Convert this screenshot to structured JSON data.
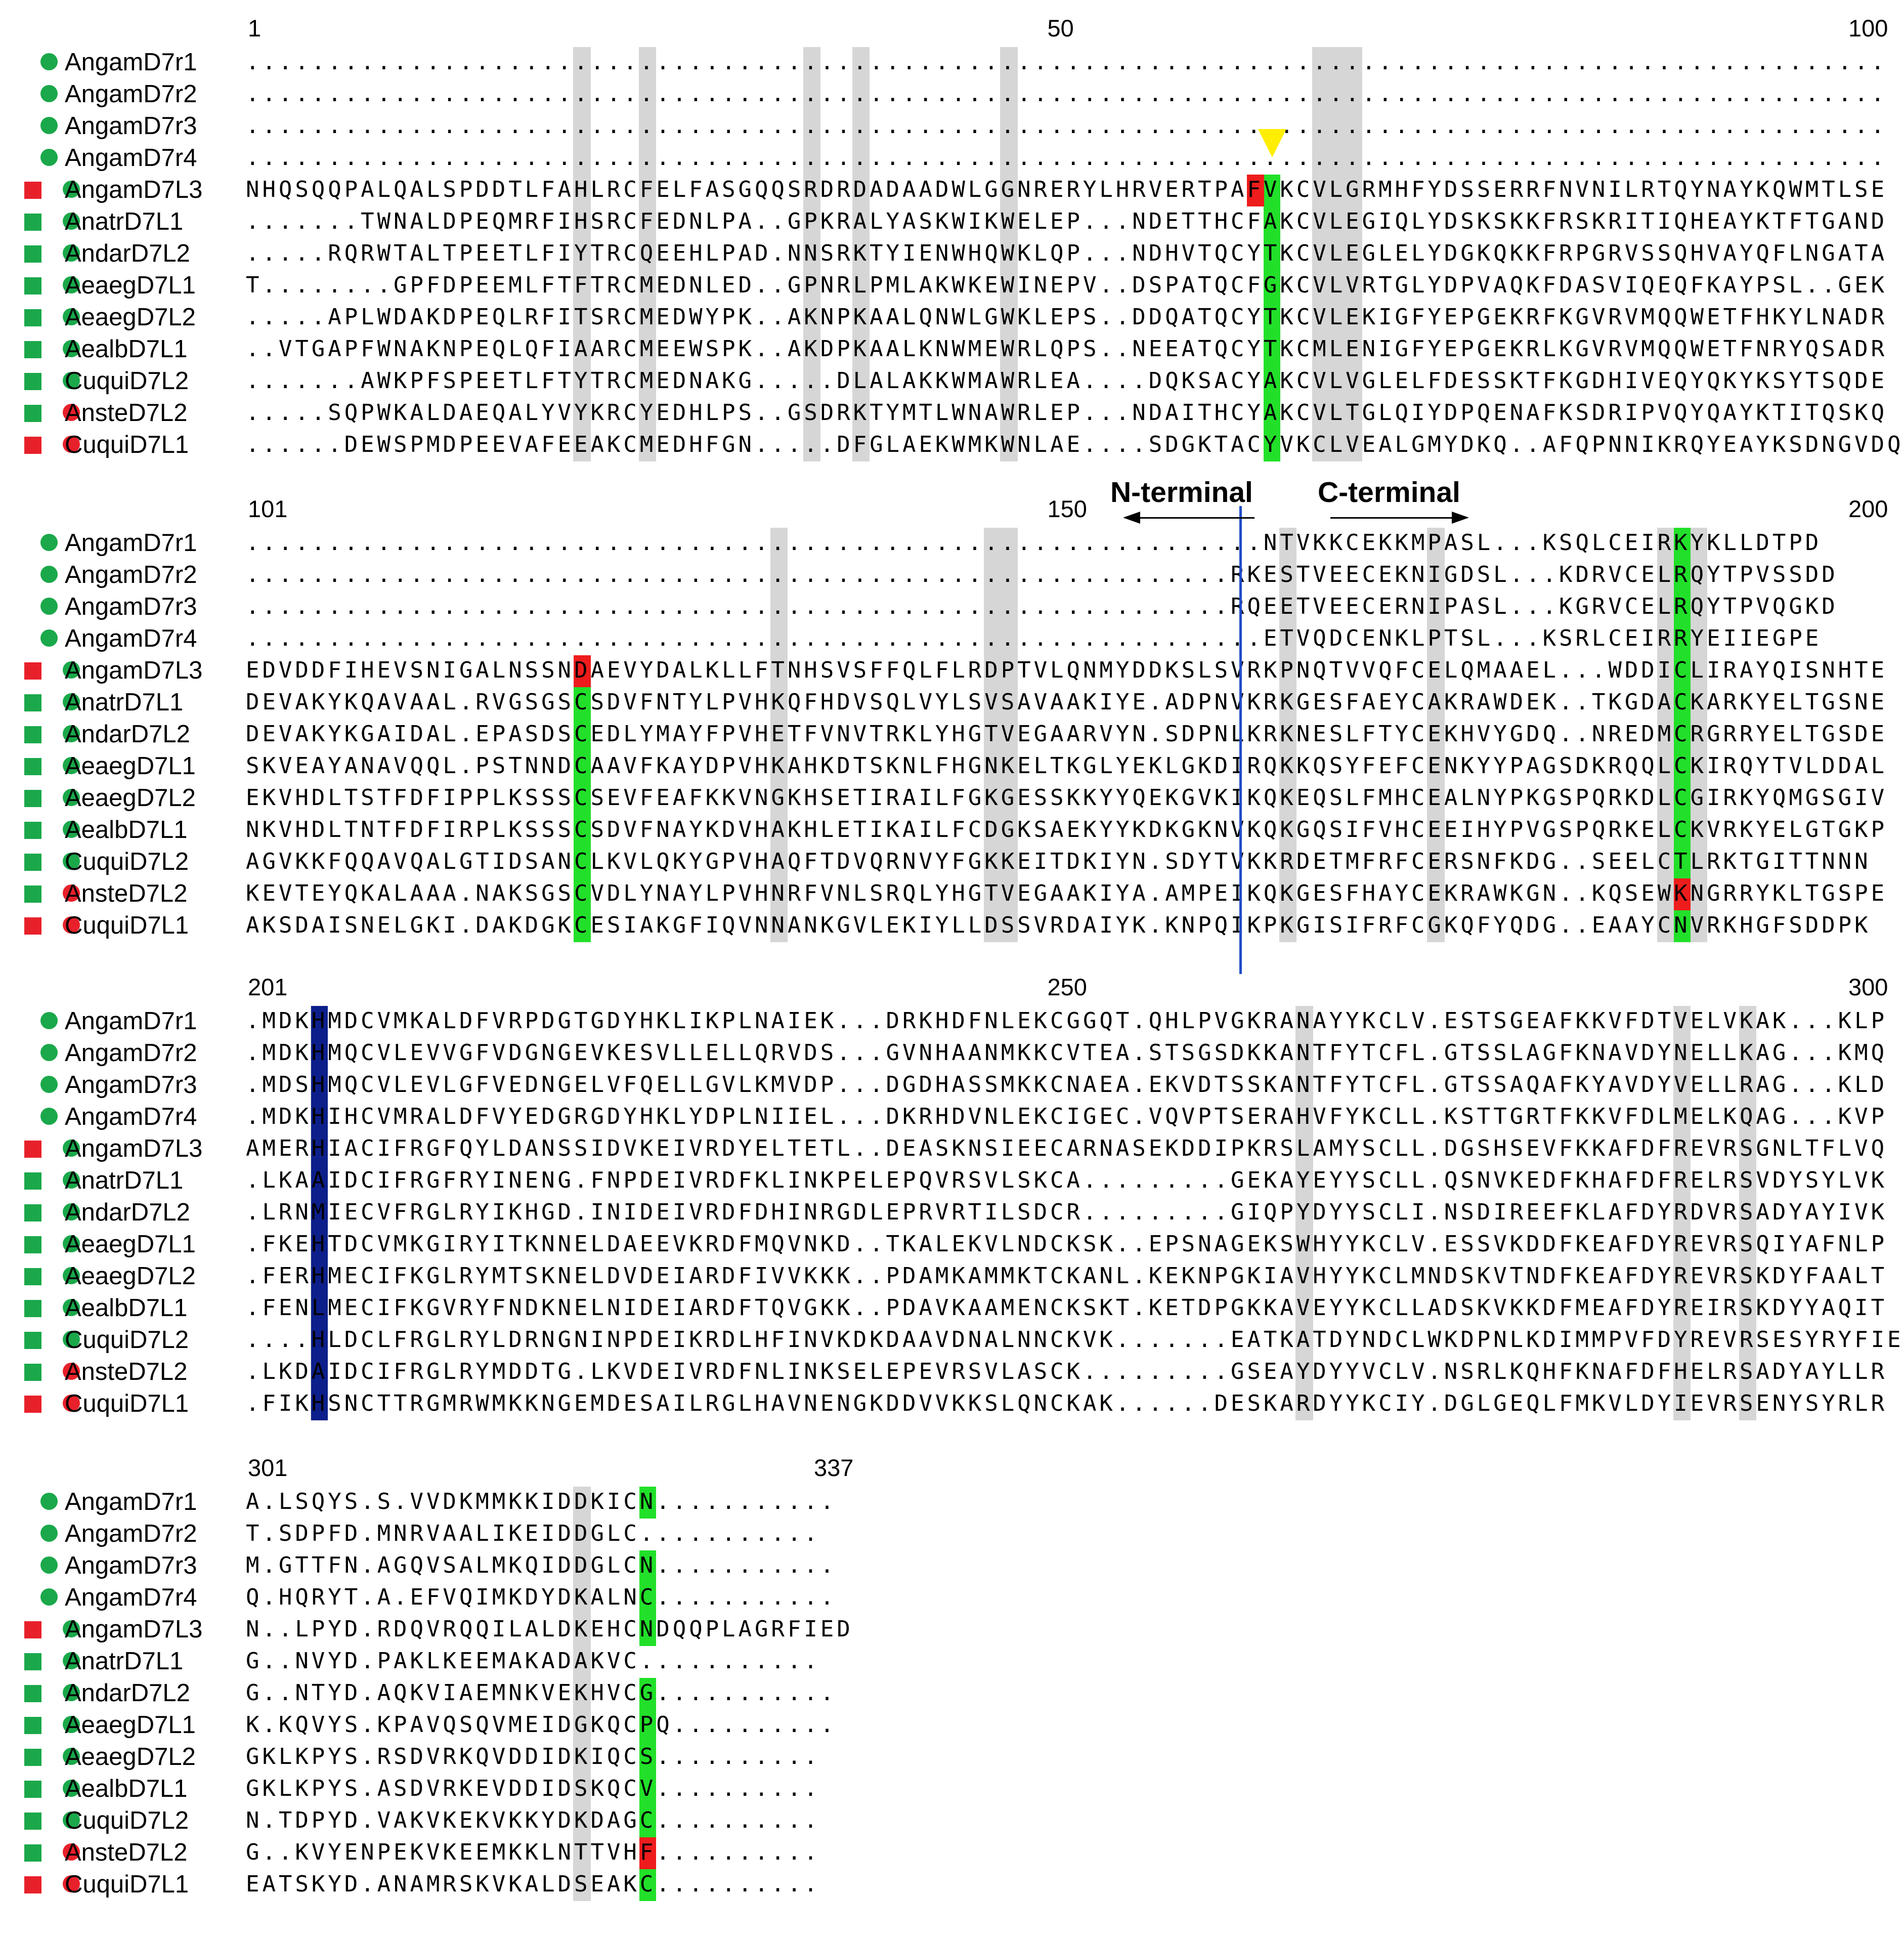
{
  "blocks": [
    {
      "start_label": "1",
      "mid_label": "50",
      "end_label": "100",
      "rows": [
        {
          "name": "AngamD7r1",
          "markers": [
            "none",
            "green-circle"
          ],
          "seq": "...................................................................................................."
        },
        {
          "name": "AngamD7r2",
          "markers": [
            "none",
            "green-circle"
          ],
          "seq": "...................................................................................................."
        },
        {
          "name": "AngamD7r3",
          "markers": [
            "none",
            "green-circle"
          ],
          "seq": "...................................................................................................."
        },
        {
          "name": "AngamD7r4",
          "markers": [
            "none",
            "green-circle"
          ],
          "seq": "...................................................................................................."
        },
        {
          "name": "AngamD7L3",
          "markers": [
            "red-square",
            "green-circle"
          ],
          "seq": "NHQSQQPALQALSPDDTLFAHLRCFELFASGQQSRDRDADAADWLGGNRERYLHRVERTPAFVKCVLGRMHFYDSSERRFNVNILRTQYNAYKQWMTLSE"
        },
        {
          "name": "AnatrD7L1",
          "markers": [
            "green-square",
            "green-circle"
          ],
          "seq": ".......TWNALDPEQMRFIHSRCFEDNLPA..GPKRALYASKWIKWELEP...NDETTHCFAKCVLEGIQLYDSKSKKFRSKRITIQHEAYKTFTGAND"
        },
        {
          "name": "AndarD7L2",
          "markers": [
            "green-square",
            "green-circle"
          ],
          "seq": ".....RQRWTALTPEETLFIYTRCQEEHLPAD.NNSRKTYIENWHQWKLQP...NDHVTQCYTKCVLEGLELYDGKQKKFRPGRVSSQHVAYQFLNGATA"
        },
        {
          "name": "AeaegD7L1",
          "markers": [
            "green-square",
            "green-circle"
          ],
          "seq": "T........GPFDPEEMLFTFTRCMEDNLED..GPNRLPMLAKWKEWINEPV..DSPATQCFGKCVLVRTGLYDPVAQKFDASVIQEQFKAYPSL..GEK"
        },
        {
          "name": "AeaegD7L2",
          "markers": [
            "green-square",
            "green-circle"
          ],
          "seq": ".....APLWDAKDPEQLRFITSRCMEDWYPK..AKNPKAALQNWLGWKLEPS..DDQATQCYTKCVLEKIGFYEPGEKRFKGVRVMQQWETFHKYLNADR"
        },
        {
          "name": "AealbD7L1",
          "markers": [
            "green-square",
            "green-circle"
          ],
          "seq": "..VTGAPFWNAKNPEQLQFIAARCMEEWSPK..AKDPKAALKNWMEWRLQPS..NEEATQCYTKCMLENIGFYEPGEKRLKGVRVMQQWETFNRYQSADR"
        },
        {
          "name": "CuquiD7L2",
          "markers": [
            "green-square",
            "green-circle"
          ],
          "seq": ".......AWKPFSPEETLFTYTRCMEDNAKG.....DLALAKKWMAWRLEA....DQKSACYAKCVLVGLELFDESSKTFKGDHIVEQYQKYKSYTSQDE"
        },
        {
          "name": "AnsteD7L2",
          "markers": [
            "green-square",
            "red-circle"
          ],
          "seq": ".....SQPWKALDAEQALYVYKRCYEDHLPS..GSDRKTYMTLWNAWRLEP...NDAITHCYAKCVLTGLQIYDPQENAFKSDRIPVQYQAYKTITQSKQ"
        },
        {
          "name": "CuquiD7L1",
          "markers": [
            "red-square",
            "red-circle"
          ],
          "seq": "......DEWSPMDPEEVAFEEAKCMEDHFGN.....DFGLAEKWMKWNLAE....SDGKTACYVKCLVEALGMYDKQ..AFQPNNIKRQYEAYKSDNGVDQ"
        }
      ]
    },
    {
      "start_label": "101",
      "mid_label": "150",
      "end_label": "200",
      "rows": [
        {
          "name": "AngamD7r1",
          "markers": [
            "none",
            "green-circle"
          ],
          "seq": "..............................................................NTVKKCEKKMPASL...KSQLCEIRKYKLLDTPD"
        },
        {
          "name": "AngamD7r2",
          "markers": [
            "none",
            "green-circle"
          ],
          "seq": "............................................................RKESTVEECEKNIGDSL...KDRVCELRQYTPVSSDD"
        },
        {
          "name": "AngamD7r3",
          "markers": [
            "none",
            "green-circle"
          ],
          "seq": "............................................................RQEETVEECERNIPASL...KGRVCELRQYTPVQGKD"
        },
        {
          "name": "AngamD7r4",
          "markers": [
            "none",
            "green-circle"
          ],
          "seq": "..............................................................ETVQDCENKLPTSL...KSRLCEIRRYEIIEGPE"
        },
        {
          "name": "AngamD7L3",
          "markers": [
            "red-square",
            "green-circle"
          ],
          "seq": "EDVDDFIHEVSNIGALNSSNDAEVYDALKLLFTNHSVSFFQLFLRDPTVLQNMYDDKSLSVRKPNQTVVQFCELQMAAEL...WDDICLIRAYQISNHTE"
        },
        {
          "name": "AnatrD7L1",
          "markers": [
            "green-square",
            "green-circle"
          ],
          "seq": "DEVAKYKQAVAAL.RVGSGSCSDVFNTYLPVHKQFHDVSQLVYLSVSAVAAKIYE.ADPNVKRKGESFAEYCAKRAWDEK..TKGDACKARKYELTGSNE"
        },
        {
          "name": "AndarD7L2",
          "markers": [
            "green-square",
            "green-circle"
          ],
          "seq": "DEVAKYKGAIDAL.EPASDSCEDLYMAYFPVHETFVNVTRKLYHGTVEGAARVYN.SDPNLKRKNESLFTYCEKHVYGDQ..NREDMCRGRRYELTGSDE"
        },
        {
          "name": "AeaegD7L1",
          "markers": [
            "green-square",
            "green-circle"
          ],
          "seq": "SKVEAYANAVQQL.PSTNNDCAAVFKAYDPVHKAHKDTSKNLFHGNKELTKGLYEKLGKDIRQKKQSYFEFCENKYYPAGSDKRQQLCKIRQYTVLDDAL"
        },
        {
          "name": "AeaegD7L2",
          "markers": [
            "green-square",
            "green-circle"
          ],
          "seq": "EKVHDLTSTFDFIPPLKSSSCSEVFEAFKKVNGKHSETIRAILFGKGESSKKYYQEKGVKIKQKEQSLFMHCEALNYPKGSPQRKDLCGIRKYQMGSGIV"
        },
        {
          "name": "AealbD7L1",
          "markers": [
            "green-square",
            "green-circle"
          ],
          "seq": "NKVHDLTNTFDFIRPLKSSSCSDVFNAYKDVHAKHLETIKAILFCDGKSAEKYYKDKGKNVKQKGQSIFVHCEEIHYPVGSPQRKELCKVRKYELGTGKP"
        },
        {
          "name": "CuquiD7L2",
          "markers": [
            "green-square",
            "green-circle"
          ],
          "seq": "AGVKKFQQAVQALGTIDSANCLKVLQKYGPVHAQFTDVQRNVYFGKKEITDKIYN.SDYTVKKRDETMFRFCERSNFKDG..SEELCTLRKTGITTNNN"
        },
        {
          "name": "AnsteD7L2",
          "markers": [
            "green-square",
            "red-circle"
          ],
          "seq": "KEVTEYQKALAAA.NAKSGSCVDLYNAYLPVHNRFVNLSRQLYHGTVEGAAKIYA.AMPEIKQKGESFHAYCEKRAWKGN..KQSEWKNGRRYKLTGSPE"
        },
        {
          "name": "CuquiD7L1",
          "markers": [
            "red-square",
            "red-circle"
          ],
          "seq": "AKSDAISNELGKI.DAKDGKCESIAKGFIQVNNANKGVLEKIYLLDSSVRDAIYK.KNPQIKPKGISIFRFCGKQFYQDG..EAAYCNVRKHGFSDDPK"
        }
      ]
    },
    {
      "start_label": "201",
      "mid_label": "250",
      "end_label": "300",
      "rows": [
        {
          "name": "AngamD7r1",
          "markers": [
            "none",
            "green-circle"
          ],
          "seq": ".MDKHMDCVMKALDFVRPDGTGDYHKLIKPLNAIEK...DRKHDFNLEKCGGQT.QHLPVGKRANAYYKCLV.ESTSGEAFKKVFDTVELVKAK...KLP"
        },
        {
          "name": "AngamD7r2",
          "markers": [
            "none",
            "green-circle"
          ],
          "seq": ".MDKHMQCVLEVVGFVDGNGEVKESVLLELLQRVDS...GVNHAANMKKCVTEA.STSGSDKKANTFYTCFL.GTSSLAGFKNAVDYNELLKAG...KMQ"
        },
        {
          "name": "AngamD7r3",
          "markers": [
            "none",
            "green-circle"
          ],
          "seq": ".MDSHMQCVLEVLGFVEDNGELVFQELLGVLKMVDP...DGDHASSMKKCNAEA.EKVDTSSKANTFYTCFL.GTSSAQAFKYAVDYVELLRAG...KLD"
        },
        {
          "name": "AngamD7r4",
          "markers": [
            "none",
            "green-circle"
          ],
          "seq": ".MDKHIHCVMRALDFVYEDGRGDYHKLYDPLNIIEL...DKRHDVNLEKCIGEC.VQVPTSERAHVFYKCLL.KSTTGRTFKKVFDLMELKQAG...KVP"
        },
        {
          "name": "AngamD7L3",
          "markers": [
            "red-square",
            "green-circle"
          ],
          "seq": "AMERHIACIFRGFQYLDANSSIDVKEIVRDYELTETL..DEASKNSIEECARNASEKDDIPKRSLAMYSCLL.DGSHSEVFKKAFDFREVRSGNLTFLVQ"
        },
        {
          "name": "AnatrD7L1",
          "markers": [
            "green-square",
            "green-circle"
          ],
          "seq": ".LKAAIDCIFRGFRYINENG.FNPDEIVRDFKLINKPELEPQVRSVLSKCA.........GEKAYEYYSCLL.QSNVKEDFKHAFDFRELRSVDYSYLVK"
        },
        {
          "name": "AndarD7L2",
          "markers": [
            "green-square",
            "green-circle"
          ],
          "seq": ".LRNMIECVFRGLRYIKHGD.INIDEIVRDFDHINRGDLEPRVRTILSDCR.........GIQPYDYYSCLI.NSDIREEFKLAFDYRDVRSADYAYIVK"
        },
        {
          "name": "AeaegD7L1",
          "markers": [
            "green-square",
            "green-circle"
          ],
          "seq": ".FKEHTDCVMKGIRYITKNNELDAEEVKRDFMQVNKD..TKALEKVLNDCKSK..EPSNAGEKSWHYYKCLV.ESSVKDDFKEAFDYREVRSQIYAFNLP"
        },
        {
          "name": "AeaegD7L2",
          "markers": [
            "green-square",
            "green-circle"
          ],
          "seq": ".FERHMECIFKGLRYMTSKNELDVDEIARDFIVVKKK..PDAMKAMMKTCKANL.KEKNPGKIAVHYYKCLMNDSKVTNDFKEAFDYREVRSKDYFAALT"
        },
        {
          "name": "AealbD7L1",
          "markers": [
            "green-square",
            "green-circle"
          ],
          "seq": ".FENLMECIFKGVRYFNDKNELNIDEIARDFTQVGKK..PDAVKAAMENCKSKT.KETDPGKKAVEYYKCLLADSKVKKDFMEAFDYREIRSKDYYAQIT"
        },
        {
          "name": "CuquiD7L2",
          "markers": [
            "green-square",
            "green-circle"
          ],
          "seq": "....HLDCLFRGLRYLDRNGNINPDEIKRDLHFINVKDKDAAVDNALNNCKVK.......EATKATDYNDCLWKDPNLKDIMMPVFDYREVRSESYRYFIE"
        },
        {
          "name": "AnsteD7L2",
          "markers": [
            "green-square",
            "red-circle"
          ],
          "seq": ".LKDAIDCIFRGLRYMDDTG.LKVDEIVRDFNLINKSELEPEVRSVLASCK.........GSEAYDYYVCLV.NSRLKQHFKNAFDFHELRSADYAYLLR"
        },
        {
          "name": "CuquiD7L1",
          "markers": [
            "red-square",
            "red-circle"
          ],
          "seq": ".FIKHSNCTTRGMRWMKKNGEMDESAILRGLHAVNENGKDDVVKKSLQNCKAK......DESKARDYYKCIY.DGLGEQLFMKVLDYIEVRSENYSYRLR"
        }
      ]
    },
    {
      "start_label": "301",
      "mid_label": "",
      "end_label": "337",
      "rows": [
        {
          "name": "AngamD7r1",
          "markers": [
            "none",
            "green-circle"
          ],
          "seq": "A.LSQYS.S.VVDKMMKKIDDKICN..........."
        },
        {
          "name": "AngamD7r2",
          "markers": [
            "none",
            "green-circle"
          ],
          "seq": "T.SDPFD.MNRVAALIKEIDDGLC..........."
        },
        {
          "name": "AngamD7r3",
          "markers": [
            "none",
            "green-circle"
          ],
          "seq": "M.GTTFN.AGQVSALMKQIDDGLCN..........."
        },
        {
          "name": "AngamD7r4",
          "markers": [
            "none",
            "green-circle"
          ],
          "seq": "Q.HQRYT.A.EFVQIMKDYDKALNC..........."
        },
        {
          "name": "AngamD7L3",
          "markers": [
            "red-square",
            "green-circle"
          ],
          "seq": "N..LPYD.RDQVRQQILALDKEHCNDQQPLAGRFIED"
        },
        {
          "name": "AnatrD7L1",
          "markers": [
            "green-square",
            "green-circle"
          ],
          "seq": "G..NVYD.PAKLKEEMAKADAKVC..........."
        },
        {
          "name": "AndarD7L2",
          "markers": [
            "green-square",
            "green-circle"
          ],
          "seq": "G..NTYD.AQKVIAEMNKVEKHVCG..........."
        },
        {
          "name": "AeaegD7L1",
          "markers": [
            "green-square",
            "green-circle"
          ],
          "seq": "K.KQVYS.KPAVQSQVMEIDGKQCPQ.........."
        },
        {
          "name": "AeaegD7L2",
          "markers": [
            "green-square",
            "green-circle"
          ],
          "seq": "GKLKPYS.RSDVRKQVDDIDKIQCS.........."
        },
        {
          "name": "AealbD7L1",
          "markers": [
            "green-square",
            "green-circle"
          ],
          "seq": "GKLKPYS.ASDVRKEVDDIDSKQCV.........."
        },
        {
          "name": "CuquiD7L2",
          "markers": [
            "green-square",
            "green-circle"
          ],
          "seq": "N.TDPYD.VAKVKEKVKKYDKDAGC.........."
        },
        {
          "name": "AnsteD7L2",
          "markers": [
            "green-square",
            "red-circle"
          ],
          "seq": "G..KVYENPEKVKEEMKKLNTTVHF.........."
        },
        {
          "name": "CuquiD7L1",
          "markers": [
            "red-square",
            "red-circle"
          ],
          "seq": "EATSKYD.ANAMRSKVKALDSEAKC.........."
        }
      ]
    }
  ],
  "annotations": {
    "n_terminal": "N-terminal",
    "c_terminal": "C-terminal"
  },
  "colors": {
    "green_marker": "#1aa84a",
    "red_marker": "#e8202a",
    "cys_highlight": "#22e02a",
    "red_highlight": "#ee1c1c",
    "his_highlight": "#0c1f8a",
    "grey_column": "#d6d6d6",
    "arrowhead_yellow": "#ffee00",
    "divider_blue": "#1f4fc8"
  }
}
